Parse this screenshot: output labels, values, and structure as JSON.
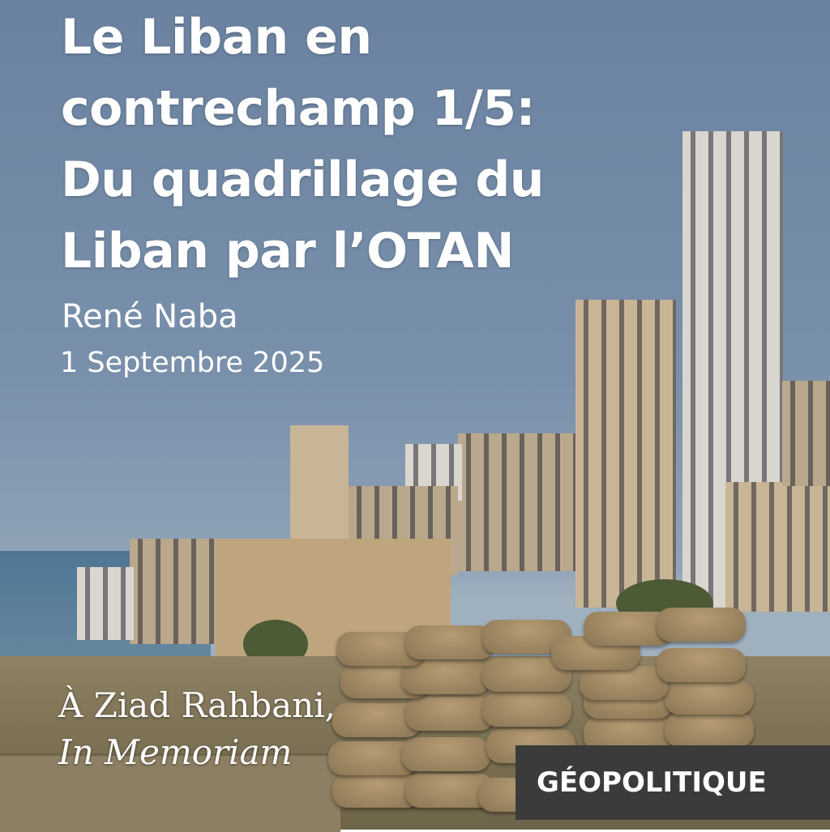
{
  "article": {
    "title_lines": [
      "Le Liban en",
      "contrechamp 1/5:",
      "Du quadrillage du",
      "Liban par l’OTAN"
    ],
    "author": "René Naba",
    "date": "1 Septembre 2025",
    "dedication": "À Ziad Rahbani,",
    "dedication_italic": "In Memoriam",
    "category_badge": "GÉOPOLITIQUE"
  },
  "colors": {
    "badge_background": "#3b3b3b",
    "text": "#ffffff",
    "sky": "#6a82a0"
  }
}
